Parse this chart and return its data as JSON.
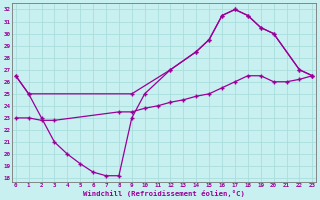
{
  "xlabel": "Windchill (Refroidissement éolien,°C)",
  "bg_color": "#c8f0f0",
  "grid_color": "#aadddd",
  "line_color": "#990099",
  "xlim": [
    -0.3,
    23.3
  ],
  "ylim": [
    17.7,
    32.5
  ],
  "xticks": [
    0,
    1,
    2,
    3,
    4,
    5,
    6,
    7,
    8,
    9,
    10,
    11,
    12,
    13,
    14,
    15,
    16,
    17,
    18,
    19,
    20,
    21,
    22,
    23
  ],
  "yticks": [
    18,
    19,
    20,
    21,
    22,
    23,
    24,
    25,
    26,
    27,
    28,
    29,
    30,
    31,
    32
  ],
  "line1_x": [
    0,
    1,
    9,
    12,
    14,
    15,
    16,
    17,
    18,
    19,
    20,
    22,
    23
  ],
  "line1_y": [
    26.5,
    25.0,
    25.0,
    27.0,
    28.5,
    29.5,
    31.5,
    32.0,
    31.5,
    30.5,
    30.0,
    27.0,
    26.5
  ],
  "line2_x": [
    0,
    1,
    2,
    3,
    4,
    5,
    6,
    7,
    8,
    9,
    10,
    12,
    14,
    15,
    16,
    17,
    18,
    19,
    20,
    22,
    23
  ],
  "line2_y": [
    26.5,
    25.0,
    23.0,
    21.0,
    20.0,
    19.2,
    18.5,
    18.2,
    18.2,
    23.0,
    25.0,
    27.0,
    28.5,
    29.5,
    31.5,
    32.0,
    31.5,
    30.5,
    30.0,
    27.0,
    26.5
  ],
  "line3_x": [
    0,
    1,
    2,
    3,
    8,
    9,
    10,
    11,
    12,
    13,
    14,
    15,
    16,
    17,
    18,
    19,
    20,
    21,
    22,
    23
  ],
  "line3_y": [
    23.0,
    23.0,
    22.8,
    22.8,
    23.5,
    23.5,
    23.8,
    24.0,
    24.3,
    24.5,
    24.8,
    25.0,
    25.5,
    26.0,
    26.5,
    26.5,
    26.0,
    26.0,
    26.2,
    26.5
  ]
}
